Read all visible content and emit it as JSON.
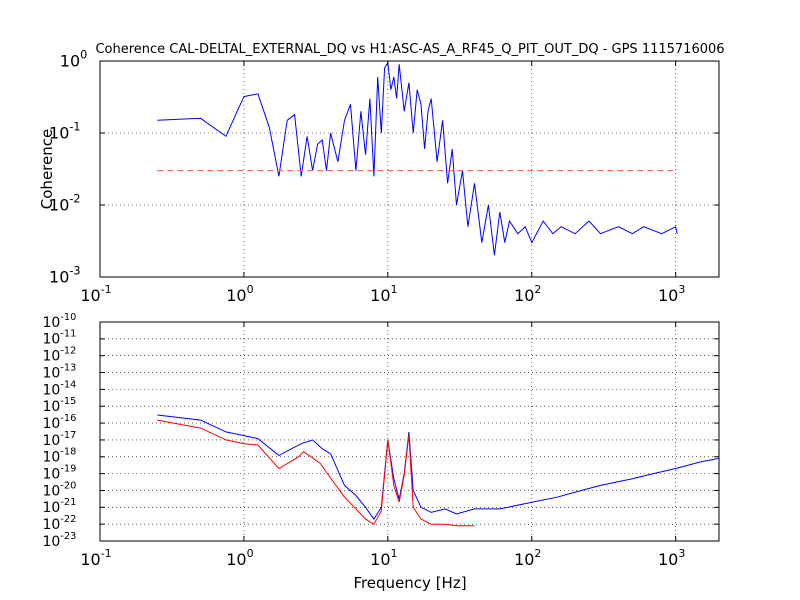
{
  "figure": {
    "title": "Coherence CAL-DELTAL_EXTERNAL_DQ vs H1:ASC-AS_A_RF45_Q_PIT_OUT_DQ - GPS 1115716006"
  },
  "chart_data": [
    {
      "type": "line",
      "title": "Coherence CAL-DELTAL_EXTERNAL_DQ vs H1:ASC-AS_A_RF45_Q_PIT_OUT_DQ - GPS 1115716006",
      "xlabel": "",
      "ylabel": "Coherence",
      "xscale": "log",
      "yscale": "log",
      "xlim": [
        0.1,
        2000
      ],
      "ylim": [
        0.001,
        1
      ],
      "grid": true,
      "xticks": [
        {
          "value": 0.1,
          "base": "10",
          "exp": "-1"
        },
        {
          "value": 1,
          "base": "10",
          "exp": "0"
        },
        {
          "value": 10,
          "base": "10",
          "exp": "1"
        },
        {
          "value": 100,
          "base": "10",
          "exp": "2"
        },
        {
          "value": 1000,
          "base": "10",
          "exp": "3"
        }
      ],
      "yticks": [
        {
          "value": 0.001,
          "base": "10",
          "exp": "-3"
        },
        {
          "value": 0.01,
          "base": "10",
          "exp": "-2"
        },
        {
          "value": 0.1,
          "base": "10",
          "exp": "-1"
        },
        {
          "value": 1,
          "base": "10",
          "exp": "0"
        }
      ],
      "series": [
        {
          "color": "#0000ff",
          "x": [
            0.25,
            0.5,
            0.75,
            1.0,
            1.25,
            1.5,
            1.75,
            2.0,
            2.25,
            2.5,
            2.75,
            3.0,
            3.25,
            3.5,
            3.75,
            4.0,
            4.5,
            5.0,
            5.5,
            6.0,
            6.5,
            7.0,
            7.5,
            8.0,
            8.5,
            9.0,
            9.5,
            10.0,
            10.5,
            11.0,
            11.5,
            12.0,
            13.0,
            14.0,
            15.0,
            16.0,
            17.0,
            18.0,
            19.0,
            20.0,
            22.0,
            24.0,
            26.0,
            28.0,
            30.0,
            33.0,
            36.0,
            40.0,
            45.0,
            50.0,
            55.0,
            60.0,
            65.0,
            70.0,
            80.0,
            90.0,
            100.0,
            120.0,
            140.0,
            160.0,
            200.0,
            250.0,
            300.0,
            400.0,
            500.0,
            600.0,
            800.0,
            1000.0,
            1024.0
          ],
          "y": [
            0.15,
            0.16,
            0.09,
            0.32,
            0.35,
            0.12,
            0.025,
            0.15,
            0.18,
            0.025,
            0.09,
            0.03,
            0.07,
            0.08,
            0.03,
            0.1,
            0.04,
            0.15,
            0.25,
            0.03,
            0.2,
            0.05,
            0.3,
            0.025,
            0.6,
            0.1,
            0.8,
            0.95,
            0.4,
            0.6,
            0.3,
            0.9,
            0.2,
            0.5,
            0.1,
            0.4,
            0.25,
            0.06,
            0.2,
            0.3,
            0.04,
            0.15,
            0.02,
            0.06,
            0.01,
            0.03,
            0.005,
            0.02,
            0.003,
            0.01,
            0.002,
            0.008,
            0.003,
            0.006,
            0.004,
            0.005,
            0.003,
            0.006,
            0.004,
            0.005,
            0.004,
            0.006,
            0.004,
            0.005,
            0.004,
            0.005,
            0.004,
            0.005,
            0.004
          ]
        },
        {
          "color": "#ff6666",
          "dashed": true,
          "x": [
            0.25,
            1024.0
          ],
          "y": [
            0.03,
            0.03
          ]
        }
      ]
    },
    {
      "type": "line",
      "title": "",
      "xlabel": "Frequency [Hz]",
      "ylabel": "",
      "xscale": "log",
      "yscale": "log",
      "xlim": [
        0.1,
        2000
      ],
      "ylim": [
        1e-23,
        1e-10
      ],
      "grid": true,
      "xticks": [
        {
          "value": 0.1,
          "base": "10",
          "exp": "-1"
        },
        {
          "value": 1,
          "base": "10",
          "exp": "0"
        },
        {
          "value": 10,
          "base": "10",
          "exp": "1"
        },
        {
          "value": 100,
          "base": "10",
          "exp": "2"
        },
        {
          "value": 1000,
          "base": "10",
          "exp": "3"
        }
      ],
      "yticks": [
        {
          "value": 1e-23,
          "base": "10",
          "exp": "-23"
        },
        {
          "value": 1e-22,
          "base": "10",
          "exp": "-22"
        },
        {
          "value": 1e-21,
          "base": "10",
          "exp": "-21"
        },
        {
          "value": 1e-20,
          "base": "10",
          "exp": "-20"
        },
        {
          "value": 1e-19,
          "base": "10",
          "exp": "-19"
        },
        {
          "value": 1e-18,
          "base": "10",
          "exp": "-18"
        },
        {
          "value": 1e-17,
          "base": "10",
          "exp": "-17"
        },
        {
          "value": 1e-16,
          "base": "10",
          "exp": "-16"
        },
        {
          "value": 1e-15,
          "base": "10",
          "exp": "-15"
        },
        {
          "value": 1e-14,
          "base": "10",
          "exp": "-14"
        },
        {
          "value": 1e-13,
          "base": "10",
          "exp": "-13"
        },
        {
          "value": 1e-12,
          "base": "10",
          "exp": "-12"
        },
        {
          "value": 1e-11,
          "base": "10",
          "exp": "-11"
        },
        {
          "value": 1e-10,
          "base": "10",
          "exp": "-10"
        }
      ],
      "series": [
        {
          "color": "#0000ff",
          "x": [
            0.25,
            0.5,
            0.75,
            1.0,
            1.25,
            1.75,
            2.5,
            3.0,
            3.5,
            4.0,
            5.0,
            6.0,
            7.0,
            8.0,
            9.0,
            10.0,
            11.0,
            12.0,
            13.0,
            14.0,
            15.0,
            17.0,
            20.0,
            25.0,
            30.0,
            40.0,
            60.0,
            100.0,
            150.0,
            200.0,
            300.0,
            500.0,
            700.0,
            1000.0,
            1500.0,
            2000.0
          ],
          "y": [
            3e-16,
            1.5e-16,
            3e-17,
            1.8e-17,
            1.2e-17,
            1.2e-18,
            6e-18,
            1e-17,
            3e-18,
            1.5e-18,
            2e-20,
            5e-21,
            1e-21,
            2e-22,
            1e-21,
            1e-17,
            5e-20,
            3e-21,
            1e-19,
            3e-17,
            1e-20,
            1e-21,
            5e-22,
            8e-22,
            4e-22,
            8e-22,
            8e-22,
            2e-21,
            4e-21,
            8e-21,
            2e-20,
            5e-20,
            1e-19,
            2e-19,
            5e-19,
            8e-19
          ]
        },
        {
          "color": "#ff0000",
          "x": [
            0.25,
            0.5,
            0.75,
            1.0,
            1.25,
            1.75,
            2.4,
            2.6,
            3.4,
            3.8,
            5.0,
            6.0,
            7.0,
            8.0,
            9.0,
            10.0,
            11.0,
            12.0,
            13.0,
            14.0,
            15.0,
            17.0,
            20.0,
            25.0,
            30.0,
            40.0
          ],
          "y": [
            1.5e-16,
            5e-17,
            1e-17,
            6e-18,
            5e-18,
            2e-19,
            1e-18,
            2e-18,
            4e-19,
            1e-19,
            4e-21,
            8e-22,
            2e-22,
            1e-22,
            6e-22,
            1e-17,
            2e-20,
            2e-21,
            8e-20,
            2e-17,
            1e-21,
            2e-22,
            1e-22,
            1e-22,
            8e-23,
            8e-23
          ]
        }
      ]
    }
  ]
}
